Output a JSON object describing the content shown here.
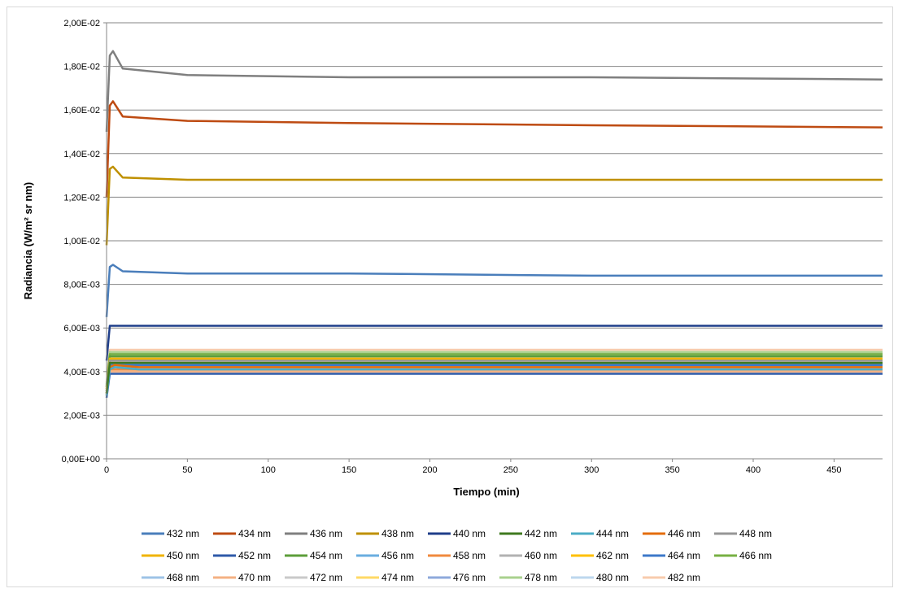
{
  "chart_data": {
    "type": "line",
    "title": "",
    "xlabel": "Tiempo (min)",
    "ylabel": "Radiancia (W/m² sr nm)",
    "xlim": [
      0,
      480
    ],
    "ylim": [
      0,
      0.02
    ],
    "xticks": [
      0,
      50,
      100,
      150,
      200,
      250,
      300,
      350,
      400,
      450
    ],
    "yticks": [
      "0,00E+00",
      "2,00E-03",
      "4,00E-03",
      "6,00E-03",
      "8,00E-03",
      "1,00E-02",
      "1,20E-02",
      "1,40E-02",
      "1,60E-02",
      "1,80E-02",
      "2,00E-02"
    ],
    "grid": "horizontal",
    "legend_position": "bottom",
    "series": [
      {
        "name": "432 nm",
        "color": "#4a7ebb",
        "x": [
          0,
          2,
          4,
          10,
          50,
          150,
          300,
          480
        ],
        "y": [
          0.0065,
          0.0088,
          0.0089,
          0.0086,
          0.0085,
          0.0085,
          0.0084,
          0.0084
        ]
      },
      {
        "name": "434 nm",
        "color": "#be4b12",
        "x": [
          0,
          2,
          4,
          10,
          50,
          150,
          300,
          480
        ],
        "y": [
          0.012,
          0.0162,
          0.0164,
          0.0157,
          0.0155,
          0.0154,
          0.0153,
          0.0152
        ]
      },
      {
        "name": "436 nm",
        "color": "#7f7f7f",
        "x": [
          0,
          2,
          4,
          10,
          50,
          150,
          300,
          480
        ],
        "y": [
          0.015,
          0.0185,
          0.0187,
          0.0179,
          0.0176,
          0.0175,
          0.0175,
          0.0174
        ]
      },
      {
        "name": "438 nm",
        "color": "#bf9000",
        "x": [
          0,
          2,
          4,
          10,
          50,
          150,
          300,
          480
        ],
        "y": [
          0.0098,
          0.0133,
          0.0134,
          0.0129,
          0.0128,
          0.0128,
          0.0128,
          0.0128
        ]
      },
      {
        "name": "440 nm",
        "color": "#1f3e8a",
        "x": [
          0,
          2,
          4,
          10,
          50,
          150,
          300,
          480
        ],
        "y": [
          0.0045,
          0.0061,
          0.0061,
          0.0061,
          0.0061,
          0.0061,
          0.0061,
          0.0061
        ]
      },
      {
        "name": "442 nm",
        "color": "#3f7a1f",
        "x": [
          0,
          2,
          5,
          20,
          480
        ],
        "y": [
          0.003,
          0.0044,
          0.0044,
          0.0044,
          0.0044
        ]
      },
      {
        "name": "444 nm",
        "color": "#4bacc6",
        "x": [
          0,
          2,
          5,
          20,
          480
        ],
        "y": [
          0.0029,
          0.0041,
          0.0042,
          0.0041,
          0.0041
        ]
      },
      {
        "name": "446 nm",
        "color": "#e46c0a",
        "x": [
          0,
          2,
          5,
          20,
          480
        ],
        "y": [
          0.003,
          0.0042,
          0.0043,
          0.0042,
          0.0042
        ]
      },
      {
        "name": "448 nm",
        "color": "#969696",
        "x": [
          0,
          2,
          5,
          20,
          480
        ],
        "y": [
          0.0031,
          0.0045,
          0.0045,
          0.0045,
          0.0045
        ]
      },
      {
        "name": "450 nm",
        "color": "#f0b400",
        "x": [
          0,
          2,
          5,
          20,
          480
        ],
        "y": [
          0.0032,
          0.0046,
          0.0046,
          0.0046,
          0.0046
        ]
      },
      {
        "name": "452 nm",
        "color": "#2e5aa8",
        "x": [
          0,
          2,
          5,
          20,
          480
        ],
        "y": [
          0.0028,
          0.0039,
          0.0039,
          0.0039,
          0.0039
        ]
      },
      {
        "name": "454 nm",
        "color": "#5c9e3a",
        "x": [
          0,
          2,
          5,
          20,
          480
        ],
        "y": [
          0.0033,
          0.0047,
          0.0047,
          0.0047,
          0.0047
        ]
      },
      {
        "name": "456 nm",
        "color": "#6aaee0",
        "x": [
          0,
          2,
          5,
          20,
          480
        ],
        "y": [
          0.0029,
          0.0042,
          0.0042,
          0.0042,
          0.0042
        ]
      },
      {
        "name": "458 nm",
        "color": "#f08a3e",
        "x": [
          0,
          2,
          5,
          20,
          480
        ],
        "y": [
          0.0029,
          0.0041,
          0.0041,
          0.0041,
          0.0041
        ]
      },
      {
        "name": "460 nm",
        "color": "#b2b2b2",
        "x": [
          0,
          2,
          5,
          20,
          480
        ],
        "y": [
          0.0031,
          0.0044,
          0.0044,
          0.0044,
          0.0044
        ]
      },
      {
        "name": "462 nm",
        "color": "#ffc000",
        "x": [
          0,
          2,
          5,
          20,
          480
        ],
        "y": [
          0.0032,
          0.0045,
          0.0045,
          0.0045,
          0.0045
        ]
      },
      {
        "name": "464 nm",
        "color": "#3d78c9",
        "x": [
          0,
          2,
          5,
          20,
          480
        ],
        "y": [
          0.003,
          0.0043,
          0.0043,
          0.0043,
          0.0043
        ]
      },
      {
        "name": "466 nm",
        "color": "#77b043",
        "x": [
          0,
          2,
          5,
          20,
          480
        ],
        "y": [
          0.0033,
          0.0048,
          0.0048,
          0.0048,
          0.0048
        ]
      },
      {
        "name": "468 nm",
        "color": "#9dc3e6",
        "x": [
          0,
          2,
          5,
          20,
          480
        ],
        "y": [
          0.0031,
          0.0044,
          0.0044,
          0.0044,
          0.0044
        ]
      },
      {
        "name": "470 nm",
        "color": "#f4b183",
        "x": [
          0,
          2,
          5,
          20,
          480
        ],
        "y": [
          0.0029,
          0.004,
          0.004,
          0.004,
          0.004
        ]
      },
      {
        "name": "472 nm",
        "color": "#c9c9c9",
        "x": [
          0,
          2,
          5,
          20,
          480
        ],
        "y": [
          0.0031,
          0.0043,
          0.0043,
          0.0043,
          0.0043
        ]
      },
      {
        "name": "474 nm",
        "color": "#ffd966",
        "x": [
          0,
          2,
          5,
          20,
          480
        ],
        "y": [
          0.003,
          0.0042,
          0.0042,
          0.0042,
          0.0042
        ]
      },
      {
        "name": "476 nm",
        "color": "#8ea9db",
        "x": [
          0,
          2,
          5,
          20,
          480
        ],
        "y": [
          0.0033,
          0.0047,
          0.0047,
          0.0047,
          0.0047
        ]
      },
      {
        "name": "478 nm",
        "color": "#a9d18e",
        "x": [
          0,
          2,
          5,
          20,
          480
        ],
        "y": [
          0.0034,
          0.0049,
          0.0049,
          0.0049,
          0.0049
        ]
      },
      {
        "name": "480 nm",
        "color": "#bdd7ee",
        "x": [
          0,
          2,
          5,
          20,
          480
        ],
        "y": [
          0.0034,
          0.0048,
          0.0048,
          0.0048,
          0.0048
        ]
      },
      {
        "name": "482 nm",
        "color": "#f8cbad",
        "x": [
          0,
          2,
          5,
          20,
          480
        ],
        "y": [
          0.0035,
          0.005,
          0.005,
          0.005,
          0.005
        ]
      }
    ]
  }
}
